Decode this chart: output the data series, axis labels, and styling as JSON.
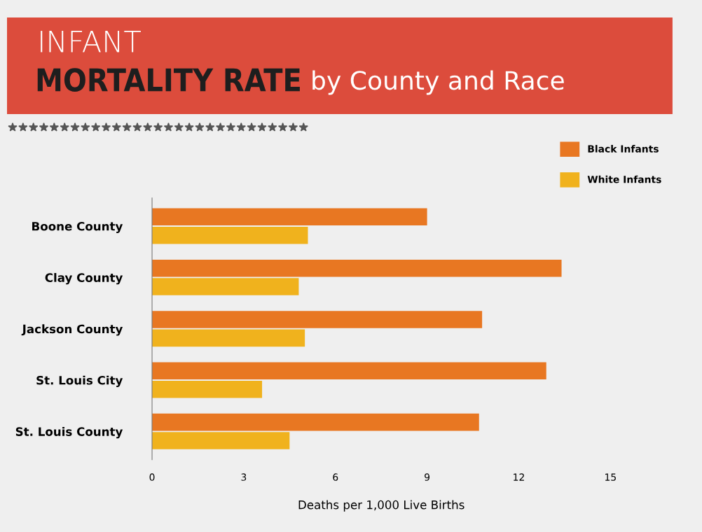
{
  "chart_data": {
    "type": "bar",
    "orientation": "horizontal",
    "title": "INFANT\nMORTALITY RATE",
    "subtitle": "by County and Race",
    "xlabel": "Deaths per 1,000 Live Births",
    "categories": [
      "Boone County",
      "Clay County",
      "Jackson County",
      "St. Louis City",
      "St. Louis County"
    ],
    "series": [
      {
        "name": "Black Infants",
        "color": "#e87722",
        "values": [
          9.0,
          13.4,
          10.8,
          12.9,
          10.7
        ]
      },
      {
        "name": "White Infants",
        "color": "#f0b21d",
        "values": [
          5.1,
          4.8,
          5.0,
          3.6,
          4.5
        ]
      }
    ],
    "xlim": [
      0,
      15
    ],
    "xticks": [
      0,
      3,
      6,
      9,
      12,
      15
    ],
    "grid": false,
    "legend": "top right"
  }
}
